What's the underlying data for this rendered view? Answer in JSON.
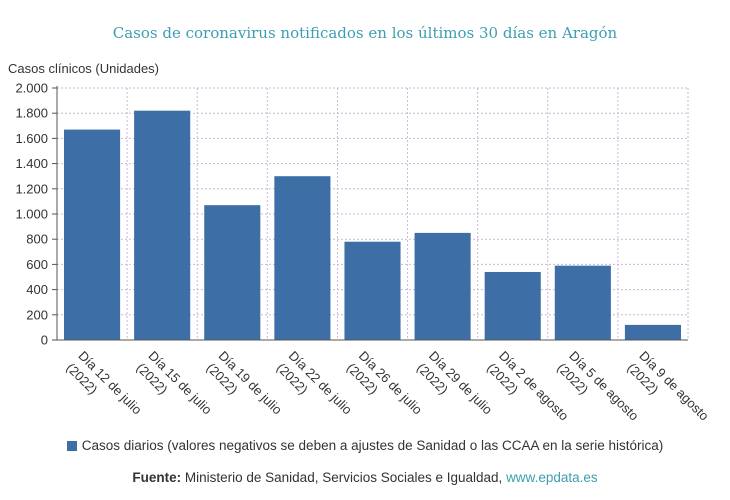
{
  "chart_data": {
    "type": "bar",
    "title": "Casos de coronavirus notificados en los últimos 30 días en Aragón",
    "ylabel": "Casos clínicos (Unidades)",
    "xlabel": "",
    "ylim": [
      0,
      2000
    ],
    "yticks": [
      0,
      200,
      400,
      600,
      800,
      1000,
      1200,
      1400,
      1600,
      1800,
      2000
    ],
    "ytick_labels": [
      "0",
      "200",
      "400",
      "600",
      "800",
      "1.000",
      "1.200",
      "1.400",
      "1.600",
      "1.800",
      "2.000"
    ],
    "categories": [
      [
        "Día 12 de julio",
        "(2022)"
      ],
      [
        "Día 15 de julio",
        "(2022)"
      ],
      [
        "Día 19 de julio",
        "(2022)"
      ],
      [
        "Día 22 de julio",
        "(2022)"
      ],
      [
        "Día 26 de julio",
        "(2022)"
      ],
      [
        "Día 29 de julio",
        "(2022)"
      ],
      [
        "Día 2 de agosto",
        "(2022)"
      ],
      [
        "Día 5 de agosto",
        "(2022)"
      ],
      [
        "Día 9 de agosto",
        "(2022)"
      ]
    ],
    "series": [
      {
        "name": "Casos diarios (valores negativos se deben a ajustes de Sanidad o las CCAA en la serie histórica)",
        "color": "#3d6fa6",
        "values": [
          1670,
          1820,
          1070,
          1300,
          780,
          850,
          540,
          590,
          120
        ]
      }
    ],
    "grid": true,
    "legend_position": "bottom"
  },
  "source": {
    "label": "Fuente:",
    "text": " Ministerio de Sanidad, Servicios Sociales e Igualdad, ",
    "link": "www.epdata.es"
  }
}
